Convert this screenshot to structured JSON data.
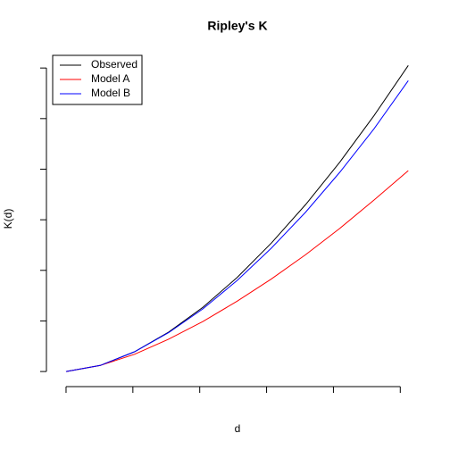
{
  "chart_data": {
    "type": "line",
    "title": "Ripley's K",
    "xlabel": "d",
    "ylabel": "K(d)",
    "x": [
      0,
      0.512,
      1.024,
      1.536,
      2.048,
      2.56,
      3.072,
      3.584,
      4.096,
      4.608,
      5.12
    ],
    "series": [
      {
        "name": "Observed",
        "color": "#000000",
        "values": [
          0,
          0.12,
          0.39,
          0.78,
          1.27,
          1.86,
          2.54,
          3.3,
          4.14,
          5.06,
          6.05
        ]
      },
      {
        "name": "Model A",
        "color": "#ff0000",
        "values": [
          0,
          0.12,
          0.34,
          0.64,
          0.99,
          1.39,
          1.83,
          2.31,
          2.83,
          3.39,
          3.97
        ]
      },
      {
        "name": "Model B",
        "color": "#0000ff",
        "values": [
          0,
          0.12,
          0.39,
          0.77,
          1.24,
          1.8,
          2.44,
          3.15,
          3.94,
          4.8,
          5.75
        ]
      }
    ],
    "xlim": [
      -0.2,
      5.33
    ],
    "xticks": [
      0,
      1,
      2,
      3,
      4,
      5
    ],
    "ylim": [
      -0.21,
      6.25
    ],
    "yticks": [
      0,
      1,
      2,
      3,
      4,
      5,
      6
    ],
    "legend": "topleft"
  }
}
